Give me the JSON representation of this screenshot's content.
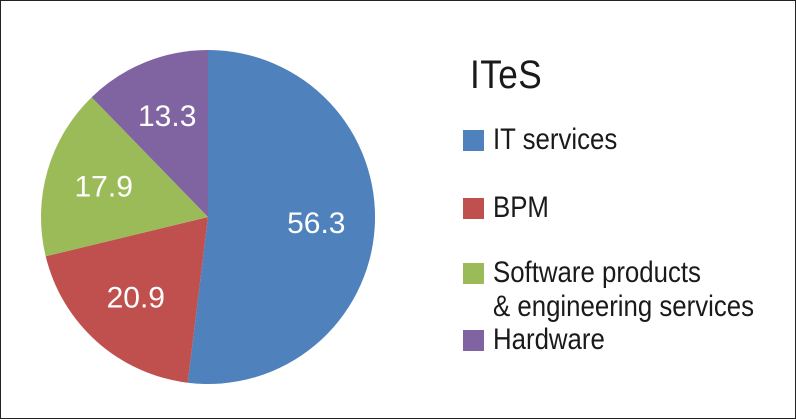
{
  "chart_data": {
    "type": "pie",
    "legend_title": "ITeS",
    "legend_position": "right",
    "slices": [
      {
        "label": "IT services",
        "value": 56.3,
        "color": "#4f81bd"
      },
      {
        "label": "BPM",
        "value": 20.9,
        "color": "#c0504d"
      },
      {
        "label": "Software products & engineering services",
        "label_lines": [
          "Software products",
          "& engineering services"
        ],
        "value": 17.9,
        "color": "#9bbb59"
      },
      {
        "label": "Hardware",
        "value": 13.3,
        "color": "#8064a2"
      }
    ],
    "start_angle_deg": 0,
    "direction": "clockwise",
    "data_label_color": "#ffffff"
  }
}
